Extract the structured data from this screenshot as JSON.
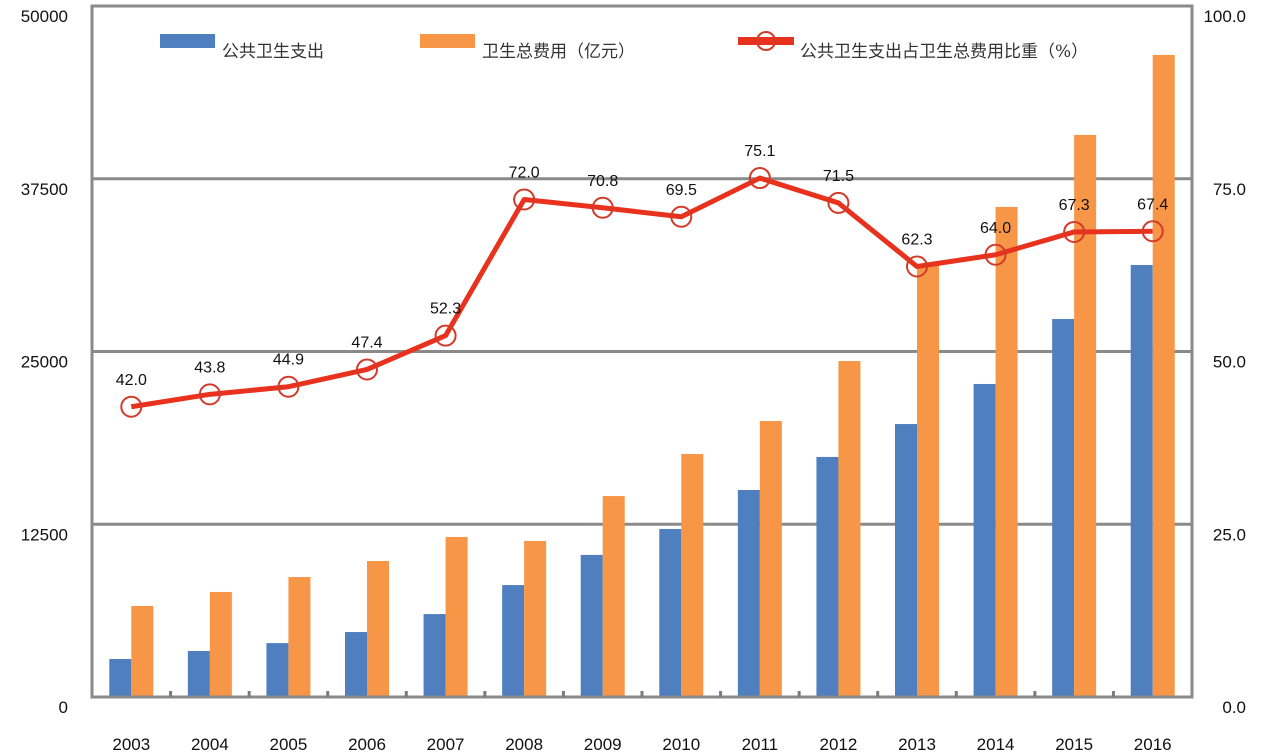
{
  "chart_data": {
    "type": "bar",
    "title": "",
    "xlabel": "",
    "ylabel": "",
    "categories": [
      "2003",
      "2004",
      "2005",
      "2006",
      "2007",
      "2008",
      "2009",
      "2010",
      "2011",
      "2012",
      "2013",
      "2014",
      "2015",
      "2016"
    ],
    "ylim": [
      0,
      50000
    ],
    "y2lim": [
      0,
      100
    ],
    "left_ticks": [
      "0",
      "12500",
      "25000",
      "37500",
      "50000"
    ],
    "left_tick_values": [
      0,
      12500,
      25000,
      37500,
      50000
    ],
    "right_ticks": [
      "0.0",
      "25.0",
      "50.0",
      "75.0",
      "100.0"
    ],
    "right_tick_values": [
      0,
      25,
      50,
      75,
      100
    ],
    "grid": true,
    "legend_position": "top",
    "series": [
      {
        "name": "公共卫生支出",
        "type": "bar",
        "axis": "left",
        "color": "#4f7fbf",
        "values": [
          2750,
          3330,
          3900,
          4700,
          6000,
          8100,
          10280,
          12160,
          14980,
          17370,
          19750,
          22650,
          27350,
          31260
        ]
      },
      {
        "name": "卫生总费用（亿元）",
        "type": "bar",
        "axis": "left",
        "color": "#f79646",
        "values": [
          6585,
          7600,
          8680,
          9840,
          11580,
          11290,
          14540,
          17580,
          19970,
          24310,
          31330,
          35460,
          40670,
          46460
        ]
      },
      {
        "name": "公共卫生支出占卫生总费用比重（%）",
        "type": "line",
        "axis": "right",
        "color": "#e8321e",
        "values": [
          42.0,
          43.8,
          44.9,
          47.4,
          52.3,
          72.0,
          70.8,
          69.5,
          75.1,
          71.5,
          62.3,
          64.0,
          67.3,
          67.4
        ],
        "labels": [
          "42.0",
          "43.8",
          "44.9",
          "47.4",
          "52.3",
          "72.0",
          "70.8",
          "69.5",
          "75.1",
          "71.5",
          "62.3",
          "64.0",
          "67.3",
          "67.4"
        ]
      }
    ]
  }
}
